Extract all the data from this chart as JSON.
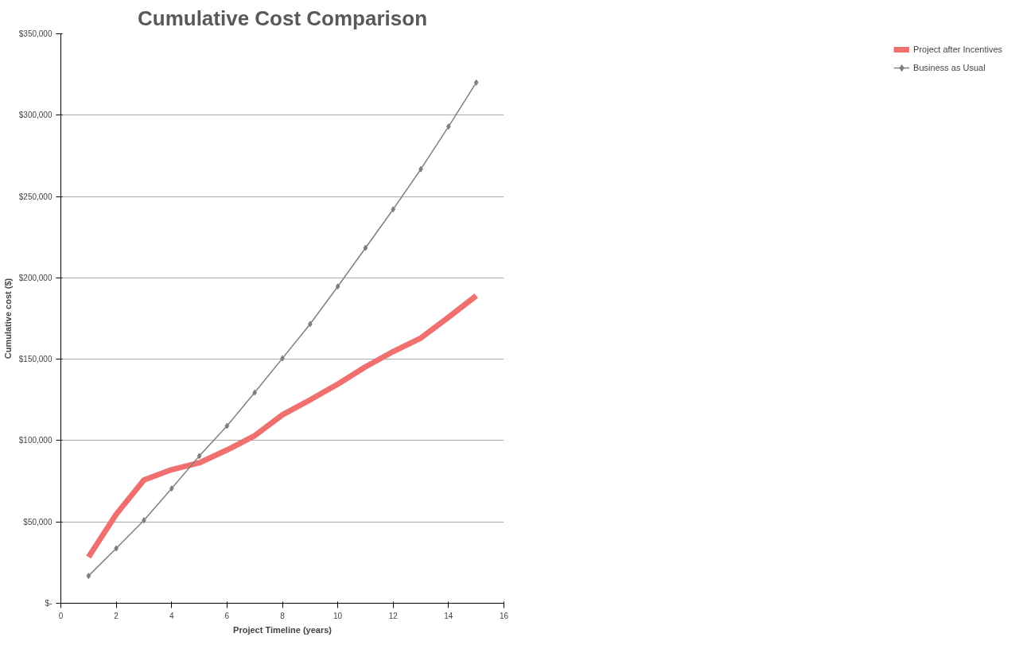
{
  "chart_data": {
    "type": "line",
    "title": "Cumulative Cost Comparison",
    "xlabel": "Project Timeline (years)",
    "ylabel": "Cumulative cost ($)",
    "x": [
      1,
      2,
      3,
      4,
      5,
      6,
      7,
      8,
      9,
      10,
      11,
      12,
      13,
      14,
      15
    ],
    "series": [
      {
        "name": "Project after Incentives",
        "color": "#f07070",
        "marker": "none",
        "values": [
          28400,
          54700,
          75800,
          82100,
          86300,
          94200,
          103000,
          115800,
          125000,
          134700,
          145300,
          154700,
          163000,
          175800,
          189000
        ]
      },
      {
        "name": "Business as Usual",
        "color": "#7f7f7f",
        "marker": "diamond",
        "values": [
          16800,
          33700,
          51000,
          70500,
          90500,
          109000,
          129500,
          150500,
          171600,
          194700,
          218400,
          242100,
          266800,
          293000,
          320000
        ]
      }
    ],
    "xlim": [
      0,
      16
    ],
    "xticks": [
      0,
      2,
      4,
      6,
      8,
      10,
      12,
      14,
      16
    ],
    "ylim": [
      0,
      350000
    ],
    "yticks": [
      {
        "value": 0,
        "label": "$-"
      },
      {
        "value": 50000,
        "label": "$50,000"
      },
      {
        "value": 100000,
        "label": "$100,000"
      },
      {
        "value": 150000,
        "label": "$150,000"
      },
      {
        "value": 200000,
        "label": "$200,000"
      },
      {
        "value": 250000,
        "label": "$250,000"
      },
      {
        "value": 300000,
        "label": "$300,000"
      },
      {
        "value": 350000,
        "label": "$350,000"
      }
    ],
    "grid": "y",
    "legend": "right",
    "line_style": "solid"
  }
}
